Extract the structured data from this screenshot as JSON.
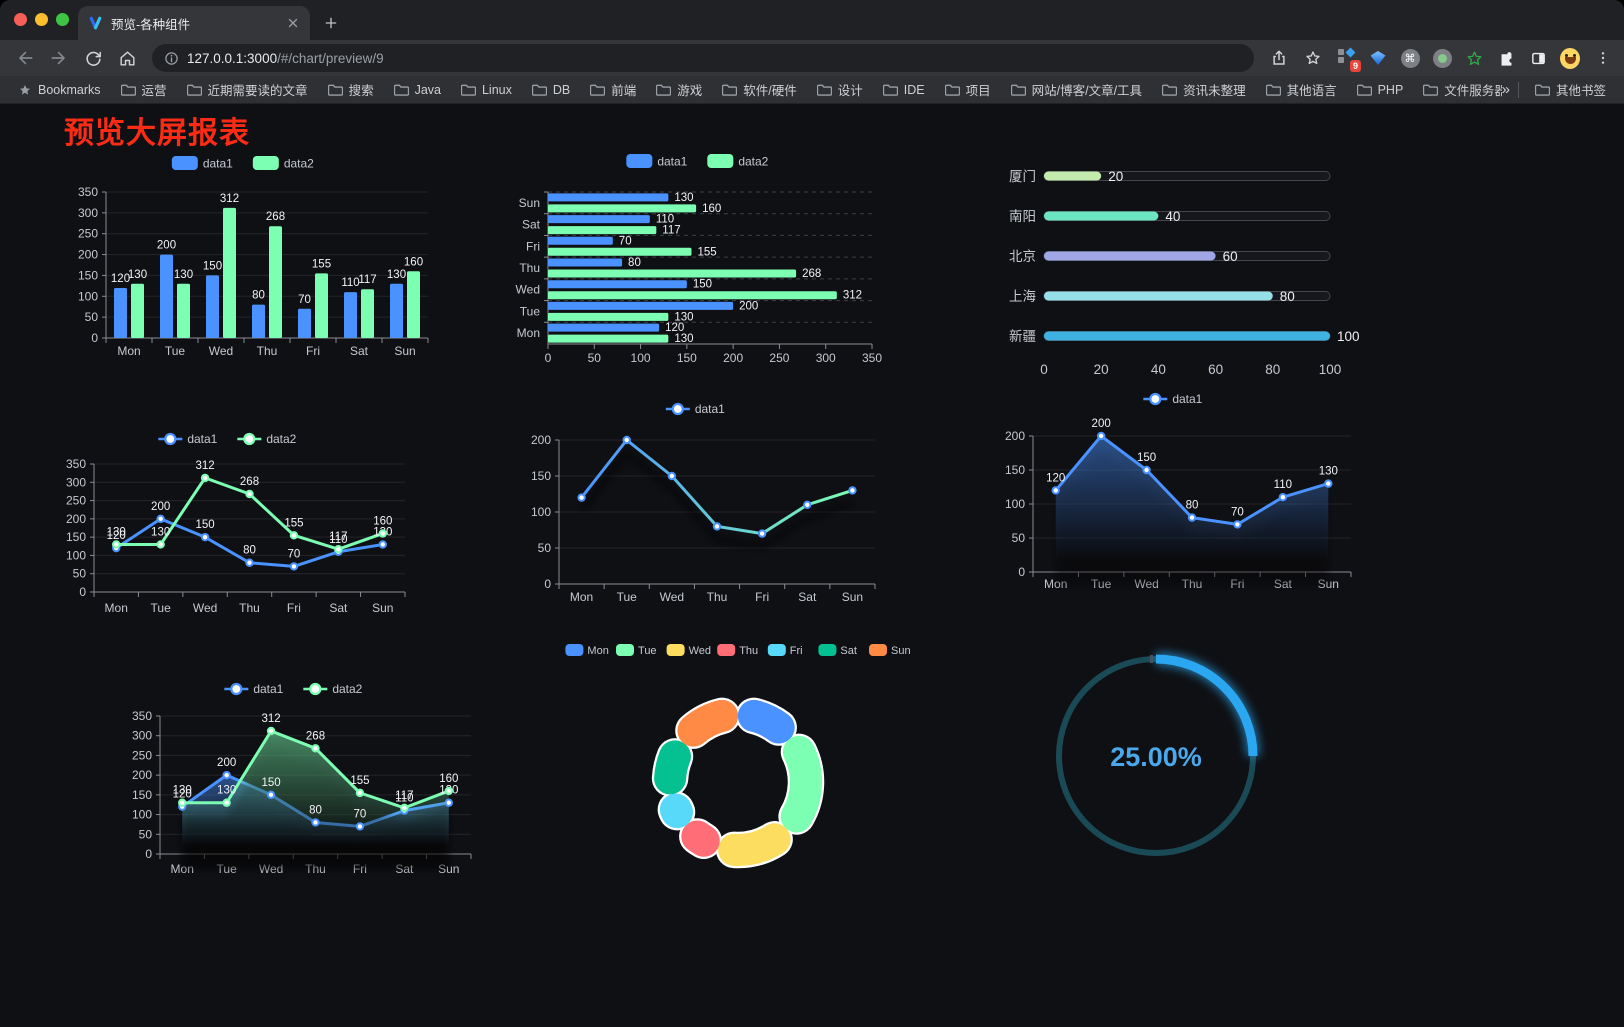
{
  "browser": {
    "tab": {
      "title": "预览-各种组件"
    },
    "url": {
      "host": "127.0.0.1:3000",
      "path": "/#/chart/preview/9"
    },
    "bookmarks_label": "Bookmarks",
    "bookmarks": [
      "运营",
      "近期需要读的文章",
      "搜索",
      "Java",
      "Linux",
      "DB",
      "前端",
      "游戏",
      "软件/硬件",
      "设计",
      "IDE",
      "项目",
      "网站/博客/文章/工具",
      "资讯未整理",
      "其他语言",
      "PHP",
      "文件服务器"
    ],
    "other_bookmarks": "其他书签",
    "overflow_chevron": "»",
    "extension_badge": "9"
  },
  "page": {
    "title": "预览大屏报表",
    "title_color": "#fb2c15"
  },
  "colors": {
    "accent_blue": "#4992ff",
    "accent_green": "#7cffb2",
    "palette": [
      "#4992ff",
      "#7cffb2",
      "#fddd60",
      "#ff6e76",
      "#58d9f9",
      "#05c091",
      "#ff8a45"
    ],
    "axis_text": "#c6c9d2",
    "axis_line": "#8a8d95",
    "grid_line": "rgba(255,255,255,0.09)",
    "split_line": "#3d4047",
    "value_label": "#f2f3f5",
    "legend_text": "#c6c9d2"
  },
  "chart_data": [
    {
      "id": "bar-vertical",
      "type": "bar",
      "legend": true,
      "value_labels": true,
      "categories": [
        "Mon",
        "Tue",
        "Wed",
        "Thu",
        "Fri",
        "Sat",
        "Sun"
      ],
      "series": [
        {
          "name": "data1",
          "color": "#4992ff",
          "values": [
            120,
            200,
            150,
            80,
            70,
            110,
            130
          ]
        },
        {
          "name": "data2",
          "color": "#7cffb2",
          "values": [
            130,
            130,
            312,
            268,
            155,
            117,
            160
          ]
        }
      ],
      "ylim": [
        0,
        350
      ],
      "ytick": 50
    },
    {
      "id": "bar-horizontal",
      "type": "bar-horizontal",
      "legend": true,
      "value_labels": true,
      "categories": [
        "Mon",
        "Tue",
        "Wed",
        "Thu",
        "Fri",
        "Sat",
        "Sun"
      ],
      "series": [
        {
          "name": "data1",
          "color": "#4992ff",
          "values": [
            120,
            200,
            150,
            80,
            70,
            110,
            130
          ]
        },
        {
          "name": "data2",
          "color": "#7cffb2",
          "values": [
            130,
            130,
            312,
            268,
            155,
            117,
            160
          ]
        }
      ],
      "xlim": [
        0,
        350
      ],
      "xtick": 50
    },
    {
      "id": "progress-list",
      "type": "progress",
      "max": 100,
      "xticks": [
        0,
        20,
        40,
        60,
        80,
        100
      ],
      "rows": [
        {
          "label": "厦门",
          "value": 20,
          "color": "#c4ebad"
        },
        {
          "label": "南阳",
          "value": 40,
          "color": "#6be6c1"
        },
        {
          "label": "北京",
          "value": 60,
          "color": "#a0a7e6"
        },
        {
          "label": "上海",
          "value": 80,
          "color": "#96dee8"
        },
        {
          "label": "新疆",
          "value": 100,
          "color": "#3fb1e3"
        }
      ]
    },
    {
      "id": "line-basic",
      "type": "line",
      "legend": true,
      "value_labels": true,
      "categories": [
        "Mon",
        "Tue",
        "Wed",
        "Thu",
        "Fri",
        "Sat",
        "Sun"
      ],
      "series": [
        {
          "name": "data1",
          "color": "#4992ff",
          "values": [
            120,
            200,
            150,
            80,
            70,
            110,
            130
          ]
        },
        {
          "name": "data2",
          "color": "#7cffb2",
          "values": [
            130,
            130,
            312,
            268,
            155,
            117,
            160
          ]
        }
      ],
      "ylim": [
        0,
        350
      ],
      "ytick": 50
    },
    {
      "id": "line-gradient",
      "type": "line",
      "legend": true,
      "value_labels": false,
      "shadow": true,
      "categories": [
        "Mon",
        "Tue",
        "Wed",
        "Thu",
        "Fri",
        "Sat",
        "Sun"
      ],
      "series": [
        {
          "name": "data1",
          "color": "#4992ff",
          "gradient": [
            "#4992ff",
            "#7cffb2"
          ],
          "values": [
            120,
            200,
            150,
            80,
            70,
            110,
            130
          ]
        }
      ],
      "ylim": [
        0,
        200
      ],
      "ytick": 50
    },
    {
      "id": "line-area",
      "type": "line",
      "legend": true,
      "value_labels": true,
      "categories": [
        "Mon",
        "Tue",
        "Wed",
        "Thu",
        "Fri",
        "Sat",
        "Sun"
      ],
      "series": [
        {
          "name": "data1",
          "color": "#4992ff",
          "area": true,
          "area_color": "#4992ff",
          "values": [
            120,
            200,
            150,
            80,
            70,
            110,
            130
          ]
        }
      ],
      "ylim": [
        0,
        200
      ],
      "ytick": 50
    },
    {
      "id": "line-area-double",
      "type": "line",
      "legend": true,
      "value_labels": true,
      "categories": [
        "Mon",
        "Tue",
        "Wed",
        "Thu",
        "Fri",
        "Sat",
        "Sun"
      ],
      "series": [
        {
          "name": "data1",
          "color": "#4992ff",
          "area": true,
          "area_color": "#4992ff",
          "values": [
            120,
            200,
            150,
            80,
            70,
            110,
            130
          ]
        },
        {
          "name": "data2",
          "color": "#7cffb2",
          "area": true,
          "area_color": "#7cffb2",
          "values": [
            130,
            130,
            312,
            268,
            155,
            117,
            160
          ]
        }
      ],
      "ylim": [
        0,
        350
      ],
      "ytick": 50
    },
    {
      "id": "donut",
      "type": "donut",
      "items": [
        {
          "label": "Mon",
          "value": 120,
          "color": "#4992ff"
        },
        {
          "label": "Tue",
          "value": 200,
          "color": "#7cffb2"
        },
        {
          "label": "Wed",
          "value": 150,
          "color": "#fddd60"
        },
        {
          "label": "Thu",
          "value": 80,
          "color": "#ff6e76"
        },
        {
          "label": "Fri",
          "value": 70,
          "color": "#58d9f9"
        },
        {
          "label": "Sat",
          "value": 110,
          "color": "#05c091"
        },
        {
          "label": "Sun",
          "value": 130,
          "color": "#ff8a45"
        }
      ]
    },
    {
      "id": "gauge",
      "type": "gauge",
      "value": 25,
      "display": "25.00%",
      "color": "#2ba7f1",
      "track": "#1b4a57",
      "text_color": "#4aa8ec"
    }
  ]
}
